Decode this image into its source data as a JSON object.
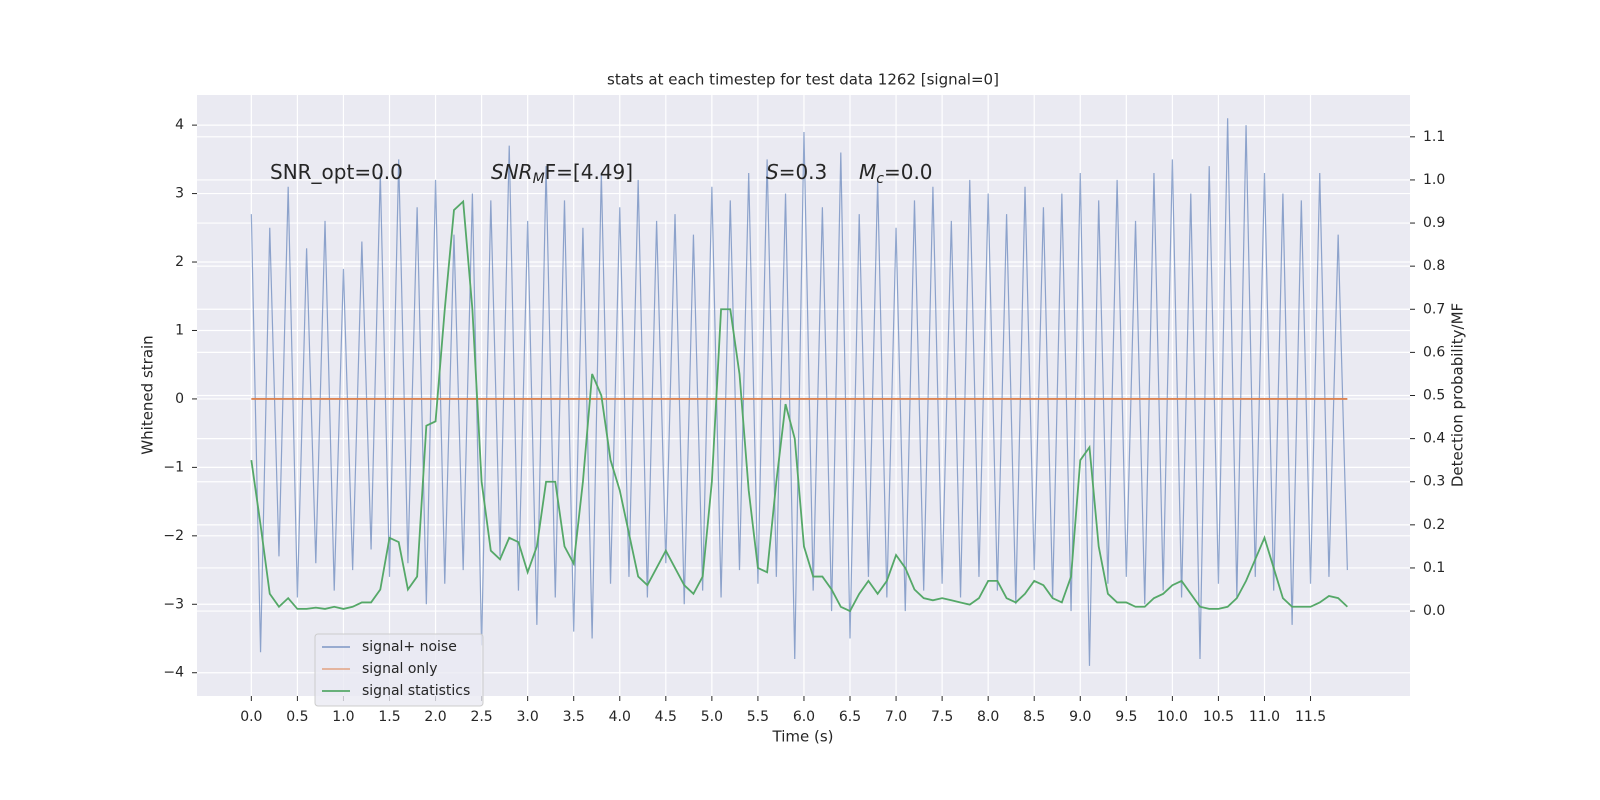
{
  "chart_data": {
    "type": "line",
    "title": "stats at each timestep for test data 1262 [signal=0]",
    "xlabel": "Time (s)",
    "ylabel": "Whitened strain",
    "y2label": "Detection probability/MF",
    "annotations": [
      {
        "text": "SNR_opt=0.0"
      },
      {
        "main": "SNR",
        "sub": "M",
        "rest": "F=[4.49]"
      },
      {
        "main": "S",
        "rest": "=0.3"
      },
      {
        "main": "M",
        "sub": "c",
        "rest": "=0.0"
      }
    ],
    "grid": true,
    "legend": "lower left",
    "background": "#eaeaf2",
    "xlim": [
      -0.59,
      12.58
    ],
    "ylim": [
      -4.34,
      4.44
    ],
    "y2lim": [
      -0.197,
      1.197
    ],
    "xticks": [
      {
        "value": 0,
        "label": "0.0"
      },
      {
        "value": 0.5,
        "label": "0.5"
      },
      {
        "value": 1,
        "label": "1.0"
      },
      {
        "value": 1.5,
        "label": "1.5"
      },
      {
        "value": 2,
        "label": "2.0"
      },
      {
        "value": 2.5,
        "label": "2.5"
      },
      {
        "value": 3,
        "label": "3.0"
      },
      {
        "value": 3.5,
        "label": "3.5"
      },
      {
        "value": 4,
        "label": "4.0"
      },
      {
        "value": 4.5,
        "label": "4.5"
      },
      {
        "value": 5,
        "label": "5.0"
      },
      {
        "value": 5.5,
        "label": "5.5"
      },
      {
        "value": 6,
        "label": "6.0"
      },
      {
        "value": 6.5,
        "label": "6.5"
      },
      {
        "value": 7,
        "label": "7.0"
      },
      {
        "value": 7.5,
        "label": "7.5"
      },
      {
        "value": 8,
        "label": "8.0"
      },
      {
        "value": 8.5,
        "label": "8.5"
      },
      {
        "value": 9,
        "label": "9.0"
      },
      {
        "value": 9.5,
        "label": "9.5"
      },
      {
        "value": 10,
        "label": "10.0"
      },
      {
        "value": 10.5,
        "label": "10.5"
      },
      {
        "value": 11,
        "label": "11.0"
      },
      {
        "value": 11.5,
        "label": "11.5"
      }
    ],
    "yticks": [
      {
        "value": -4,
        "label": "−4"
      },
      {
        "value": -3,
        "label": "−3"
      },
      {
        "value": -2,
        "label": "−2"
      },
      {
        "value": -1,
        "label": "−1"
      },
      0,
      1,
      2,
      3,
      4
    ],
    "y2ticks": [
      {
        "value": 0,
        "label": "0.0"
      },
      {
        "value": 0.1,
        "label": "0.1"
      },
      {
        "value": 0.2,
        "label": "0.2"
      },
      {
        "value": 0.3,
        "label": "0.3"
      },
      {
        "value": 0.4,
        "label": "0.4"
      },
      {
        "value": 0.5,
        "label": "0.5"
      },
      {
        "value": 0.6,
        "label": "0.6"
      },
      {
        "value": 0.7,
        "label": "0.7"
      },
      {
        "value": 0.8,
        "label": "0.8"
      },
      {
        "value": 0.9,
        "label": "0.9"
      },
      {
        "value": 1,
        "label": "1.0"
      },
      {
        "value": 1.1,
        "label": "1.1"
      }
    ],
    "x": [
      0,
      0.1,
      0.2,
      0.3,
      0.4,
      0.5,
      0.6,
      0.7,
      0.8,
      0.9,
      1,
      1.1,
      1.2,
      1.3,
      1.4,
      1.5,
      1.6,
      1.7,
      1.8,
      1.9,
      2,
      2.1,
      2.2,
      2.3,
      2.4,
      2.5,
      2.6,
      2.7,
      2.8,
      2.9,
      3,
      3.1,
      3.2,
      3.3,
      3.4,
      3.5,
      3.6,
      3.7,
      3.8,
      3.9,
      4,
      4.1,
      4.2,
      4.3,
      4.4,
      4.5,
      4.6,
      4.7,
      4.8,
      4.9,
      5,
      5.1,
      5.2,
      5.3,
      5.4,
      5.5,
      5.6,
      5.7,
      5.8,
      5.9,
      6,
      6.1,
      6.2,
      6.3,
      6.4,
      6.5,
      6.6,
      6.7,
      6.8,
      6.9,
      7,
      7.1,
      7.2,
      7.3,
      7.4,
      7.5,
      7.6,
      7.7,
      7.8,
      7.9,
      8,
      8.1,
      8.2,
      8.3,
      8.4,
      8.5,
      8.6,
      8.7,
      8.8,
      8.9,
      9,
      9.1,
      9.2,
      9.3,
      9.4,
      9.5,
      9.6,
      9.7,
      9.8,
      9.9,
      10,
      10.1,
      10.2,
      10.3,
      10.4,
      10.5,
      10.6,
      10.7,
      10.8,
      10.9,
      11,
      11.1,
      11.2,
      11.3,
      11.4,
      11.5,
      11.6,
      11.7,
      11.8,
      11.9
    ],
    "series": [
      {
        "name": "signal+ noise",
        "color": "#4c72b0",
        "axis": "y",
        "values": [
          2.7,
          -3.7,
          2.5,
          -2.3,
          3.1,
          -2.9,
          2.2,
          -2.4,
          2.6,
          -2.8,
          1.9,
          -2.5,
          2.3,
          -2.2,
          3.3,
          -2.6,
          3.5,
          -2.4,
          2.8,
          -3.0,
          3.2,
          -2.7,
          2.4,
          -2.5,
          3.0,
          -3.6,
          2.9,
          -2.3,
          3.7,
          -2.8,
          2.6,
          -3.3,
          3.4,
          -2.9,
          2.9,
          -3.4,
          2.5,
          -3.5,
          3.3,
          -2.7,
          2.8,
          -2.6,
          3.2,
          -2.9,
          2.6,
          -2.4,
          2.7,
          -3.0,
          2.4,
          -2.8,
          3.1,
          -2.9,
          2.9,
          -2.5,
          3.3,
          -2.7,
          3.5,
          -2.6,
          3.0,
          -3.8,
          3.9,
          -2.8,
          2.8,
          -3.1,
          3.6,
          -3.5,
          2.7,
          -2.6,
          3.2,
          -2.9,
          2.5,
          -3.1,
          2.9,
          -2.8,
          3.1,
          -2.7,
          2.6,
          -2.9,
          3.2,
          -2.6,
          3.0,
          -2.8,
          2.7,
          -3.0,
          3.1,
          -2.5,
          2.8,
          -2.9,
          3.0,
          -3.1,
          3.3,
          -3.9,
          2.9,
          -2.7,
          3.2,
          -2.6,
          2.6,
          -3.0,
          3.3,
          -2.8,
          3.5,
          -2.9,
          3.0,
          -3.8,
          3.4,
          -2.7,
          4.1,
          -2.9,
          4.0,
          -2.6,
          3.3,
          -2.8,
          3.0,
          -3.3,
          2.9,
          -2.7,
          3.3,
          -2.6,
          2.4,
          -2.5
        ]
      },
      {
        "name": "signal only",
        "color": "#dd8452",
        "axis": "y",
        "values": [
          0,
          0,
          0,
          0,
          0,
          0,
          0,
          0,
          0,
          0,
          0,
          0,
          0,
          0,
          0,
          0,
          0,
          0,
          0,
          0,
          0,
          0,
          0,
          0,
          0,
          0,
          0,
          0,
          0,
          0,
          0,
          0,
          0,
          0,
          0,
          0,
          0,
          0,
          0,
          0,
          0,
          0,
          0,
          0,
          0,
          0,
          0,
          0,
          0,
          0,
          0,
          0,
          0,
          0,
          0,
          0,
          0,
          0,
          0,
          0,
          0,
          0,
          0,
          0,
          0,
          0,
          0,
          0,
          0,
          0,
          0,
          0,
          0,
          0,
          0,
          0,
          0,
          0,
          0,
          0,
          0,
          0,
          0,
          0,
          0,
          0,
          0,
          0,
          0,
          0,
          0,
          0,
          0,
          0,
          0,
          0,
          0,
          0,
          0,
          0,
          0,
          0,
          0,
          0,
          0,
          0,
          0,
          0,
          0,
          0,
          0,
          0,
          0,
          0,
          0,
          0,
          0,
          0,
          0,
          0
        ]
      },
      {
        "name": "signal statistics",
        "color": "#55a868",
        "axis": "y2",
        "values": [
          0.35,
          0.2,
          0.04,
          0.01,
          0.03,
          0.005,
          0.005,
          0.008,
          0.005,
          0.01,
          0.005,
          0.01,
          0.02,
          0.02,
          0.05,
          0.17,
          0.16,
          0.05,
          0.08,
          0.43,
          0.44,
          0.7,
          0.93,
          0.95,
          0.7,
          0.3,
          0.14,
          0.12,
          0.17,
          0.16,
          0.09,
          0.15,
          0.3,
          0.3,
          0.15,
          0.11,
          0.3,
          0.55,
          0.5,
          0.35,
          0.28,
          0.18,
          0.08,
          0.06,
          0.1,
          0.14,
          0.1,
          0.06,
          0.04,
          0.08,
          0.3,
          0.7,
          0.7,
          0.55,
          0.28,
          0.1,
          0.09,
          0.3,
          0.48,
          0.4,
          0.15,
          0.08,
          0.08,
          0.05,
          0.01,
          0.0,
          0.04,
          0.07,
          0.04,
          0.07,
          0.13,
          0.1,
          0.05,
          0.03,
          0.025,
          0.03,
          0.025,
          0.02,
          0.015,
          0.03,
          0.07,
          0.07,
          0.03,
          0.02,
          0.04,
          0.07,
          0.06,
          0.03,
          0.02,
          0.08,
          0.35,
          0.38,
          0.15,
          0.04,
          0.02,
          0.02,
          0.01,
          0.01,
          0.03,
          0.04,
          0.06,
          0.07,
          0.04,
          0.01,
          0.005,
          0.005,
          0.01,
          0.03,
          0.07,
          0.12,
          0.17,
          0.1,
          0.03,
          0.01,
          0.01,
          0.01,
          0.02,
          0.035,
          0.03,
          0.01
        ]
      }
    ]
  }
}
